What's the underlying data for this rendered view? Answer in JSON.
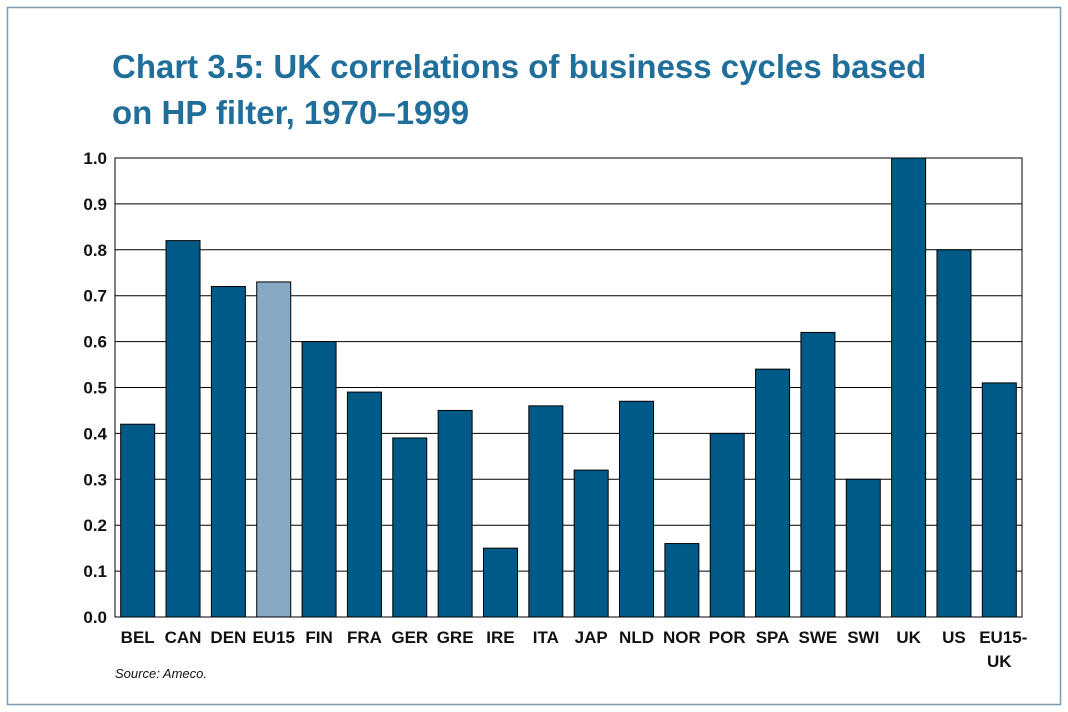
{
  "chart_data": {
    "type": "bar",
    "title": "Chart 3.5: UK correlations of business cycles based on HP filter, 1970–1999",
    "source": "Source: Ameco.",
    "categories": [
      "BEL",
      "CAN",
      "DEN",
      "EU15",
      "FIN",
      "FRA",
      "GER",
      "GRE",
      "IRE",
      "ITA",
      "JAP",
      "NLD",
      "NOR",
      "POR",
      "SPA",
      "SWE",
      "SWI",
      "UK",
      "US",
      "EU15-UK"
    ],
    "values": [
      0.42,
      0.82,
      0.72,
      0.73,
      0.6,
      0.49,
      0.39,
      0.45,
      0.15,
      0.46,
      0.32,
      0.47,
      0.16,
      0.4,
      0.54,
      0.62,
      0.3,
      1.0,
      0.8,
      0.51
    ],
    "colors": [
      "#005a87",
      "#005a87",
      "#005a87",
      "#87a9c4",
      "#005a87",
      "#005a87",
      "#005a87",
      "#005a87",
      "#005a87",
      "#005a87",
      "#005a87",
      "#005a87",
      "#005a87",
      "#005a87",
      "#005a87",
      "#005a87",
      "#005a87",
      "#005a87",
      "#005a87",
      "#005a87"
    ],
    "ylim": [
      0,
      1
    ],
    "yticks": [
      {
        "value": 0,
        "label": "0.0"
      },
      0.1,
      0.2,
      0.3,
      0.4,
      0.5,
      0.6,
      0.7,
      0.8,
      0.9,
      {
        "value": 1,
        "label": "1.0"
      }
    ],
    "grid": true
  }
}
